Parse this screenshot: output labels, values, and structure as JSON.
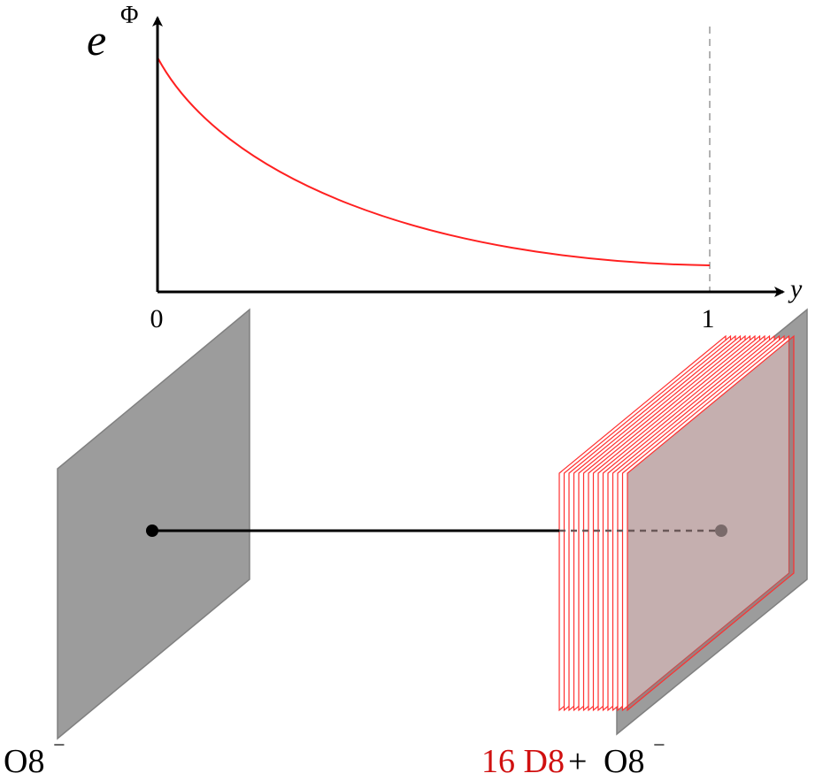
{
  "plot": {
    "y_label": "e",
    "y_label_exponent": "Φ",
    "x_label": "y",
    "x_ticks": [
      "0",
      "1"
    ]
  },
  "left_plane": {
    "label": "O8",
    "label_superscript": "−"
  },
  "right_plane": {
    "stack_label": "16 D8",
    "plus": "+",
    "label": "O8",
    "label_superscript": "−"
  }
}
